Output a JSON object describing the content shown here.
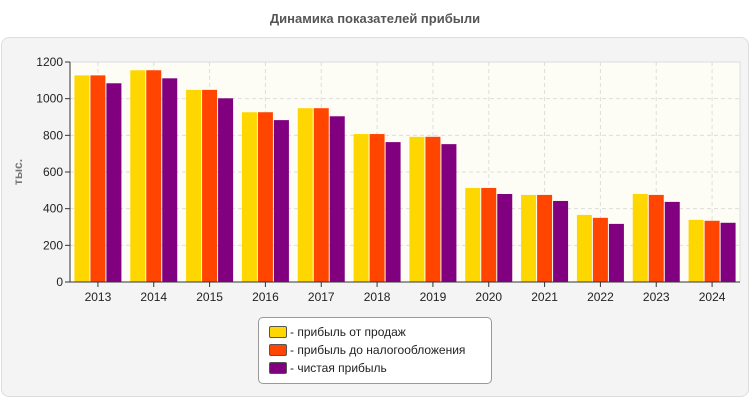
{
  "chart_data": {
    "type": "bar",
    "title": "Динамика показателей прибыли",
    "ylabel": "тыс.",
    "xlabel": "",
    "ylim": [
      0,
      1200
    ],
    "yticks": [
      0,
      200,
      400,
      600,
      800,
      1000,
      1200
    ],
    "grid": true,
    "legend_position": "bottom",
    "categories": [
      "2013",
      "2014",
      "2015",
      "2016",
      "2017",
      "2018",
      "2019",
      "2020",
      "2021",
      "2022",
      "2023",
      "2024"
    ],
    "series": [
      {
        "name": "- прибыль от продаж",
        "color": "#FFD700",
        "values": [
          1127,
          1155,
          1048,
          926,
          948,
          807,
          792,
          513,
          475,
          366,
          480,
          339
        ]
      },
      {
        "name": "- прибыль до налогообложения",
        "color": "#FF4500",
        "values": [
          1127,
          1155,
          1048,
          926,
          948,
          807,
          792,
          513,
          475,
          350,
          475,
          334
        ]
      },
      {
        "name": "- чистая прибыль",
        "color": "#800080",
        "values": [
          1084,
          1111,
          1002,
          883,
          904,
          763,
          752,
          480,
          442,
          317,
          437,
          323
        ]
      }
    ]
  }
}
